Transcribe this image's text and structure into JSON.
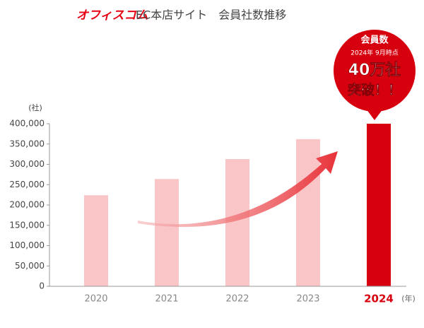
{
  "chart_data": {
    "type": "bar",
    "brand": "オフィスコム",
    "title": "EC本店サイト　会員社数推移",
    "y_unit": "(社)",
    "x_unit": "(年)",
    "categories": [
      "2020",
      "2021",
      "2022",
      "2023",
      "2024"
    ],
    "values": [
      224000,
      264000,
      313000,
      362000,
      400000
    ],
    "colors": [
      "#f9c5c7",
      "#f9c5c7",
      "#f9c5c7",
      "#f9c5c7",
      "#d7000f"
    ],
    "label_colors": [
      "#888888",
      "#888888",
      "#888888",
      "#888888",
      "#d7000f"
    ],
    "ylim": [
      0,
      400000
    ],
    "yticks": [
      0,
      {
        "value": 50000,
        "label": "50,000"
      },
      {
        "value": 100000,
        "label": "100,000"
      },
      {
        "value": 150000,
        "label": "150,000"
      },
      {
        "value": 200000,
        "label": "200,000"
      },
      {
        "value": 250000,
        "label": "250,000"
      },
      {
        "value": 300000,
        "label": "300,000"
      },
      {
        "value": 350000,
        "label": "350,000"
      },
      {
        "value": 400000,
        "label": "400,000"
      }
    ],
    "grid": false,
    "badge": {
      "line1": "会員数",
      "line2": "2024年 9月時点",
      "line3": "40万社",
      "line4": "突破！！"
    }
  }
}
